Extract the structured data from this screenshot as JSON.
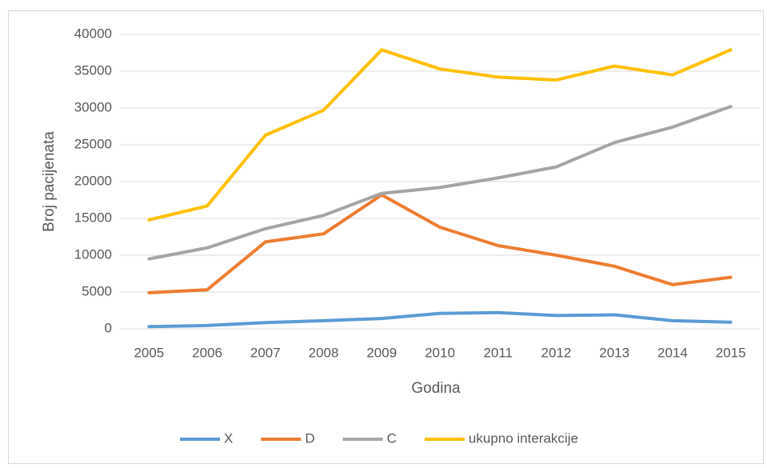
{
  "chart_data": {
    "type": "line",
    "x_label": "Godina",
    "y_label": "Broj pacijenata",
    "categories": [
      "2005",
      "2006",
      "2007",
      "2008",
      "2009",
      "2010",
      "2011",
      "2012",
      "2013",
      "2014",
      "2015"
    ],
    "series": [
      {
        "name": "X",
        "color": "#5b9bd5",
        "values": [
          300,
          450,
          850,
          1100,
          1400,
          2100,
          2200,
          1800,
          1900,
          1100,
          900
        ]
      },
      {
        "name": "D",
        "color": "#ed7d31",
        "values": [
          4900,
          5300,
          11800,
          12900,
          18200,
          13800,
          11300,
          10000,
          8500,
          6000,
          7000
        ]
      },
      {
        "name": "C",
        "color": "#a5a5a5",
        "values": [
          9500,
          11000,
          13600,
          15400,
          18400,
          19200,
          20500,
          22000,
          25300,
          27400,
          30200
        ]
      },
      {
        "name": "ukupno interakcije",
        "color": "#ffc000",
        "values": [
          14800,
          16700,
          26300,
          29700,
          37900,
          35300,
          34200,
          33800,
          35700,
          34500,
          37900
        ]
      }
    ],
    "ylim": [
      0,
      40000
    ],
    "yticks": [
      0,
      5000,
      10000,
      15000,
      20000,
      25000,
      30000,
      35000,
      40000
    ],
    "grid": true,
    "legend": "bottom"
  }
}
